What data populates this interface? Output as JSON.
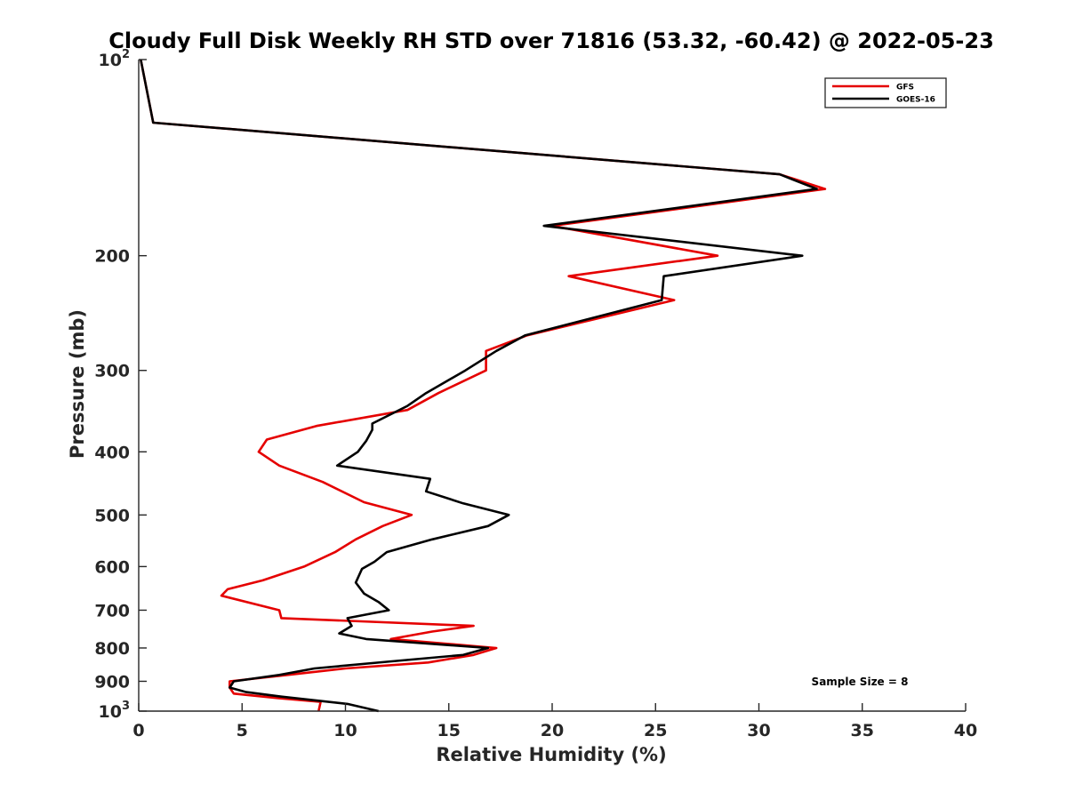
{
  "chart_data": {
    "type": "line",
    "title": "Cloudy Full Disk Weekly RH STD over 71816 (53.32, -60.42) @ 2022-05-23",
    "xlabel": "Relative Humidity (%)",
    "ylabel": "Pressure (mb)",
    "xlim": [
      0,
      40
    ],
    "ylim": [
      100,
      1000
    ],
    "y_scale": "log",
    "y_reversed": true,
    "xticks": [
      0,
      5,
      10,
      15,
      20,
      25,
      30,
      35,
      40
    ],
    "xtick_labels": [
      "0",
      "5",
      "10",
      "15",
      "20",
      "25",
      "30",
      "35",
      "40"
    ],
    "yticks": [
      100,
      200,
      300,
      400,
      500,
      600,
      700,
      800,
      900,
      1000
    ],
    "ytick_labels": [
      {
        "base": "10",
        "exp": "2"
      },
      {
        "base": "200",
        "exp": ""
      },
      {
        "base": "300",
        "exp": ""
      },
      {
        "base": "400",
        "exp": ""
      },
      {
        "base": "500",
        "exp": ""
      },
      {
        "base": "600",
        "exp": ""
      },
      {
        "base": "700",
        "exp": ""
      },
      {
        "base": "800",
        "exp": ""
      },
      {
        "base": "900",
        "exp": ""
      },
      {
        "base": "10",
        "exp": "3"
      }
    ],
    "grid": false,
    "legend_position": "top-right",
    "annotation": "Sample Size = 8",
    "series": [
      {
        "name": "GFS",
        "color": "#e50000",
        "points": [
          [
            0.1,
            100
          ],
          [
            0.7,
            125
          ],
          [
            31.0,
            150
          ],
          [
            33.2,
            158
          ],
          [
            20.0,
            180
          ],
          [
            28.0,
            200
          ],
          [
            20.8,
            215
          ],
          [
            25.9,
            234
          ],
          [
            18.8,
            265
          ],
          [
            16.8,
            280
          ],
          [
            16.8,
            300
          ],
          [
            14.5,
            325
          ],
          [
            13.0,
            345
          ],
          [
            8.6,
            365
          ],
          [
            6.2,
            383
          ],
          [
            5.8,
            400
          ],
          [
            6.8,
            420
          ],
          [
            8.9,
            445
          ],
          [
            10.9,
            478
          ],
          [
            13.2,
            500
          ],
          [
            11.8,
            520
          ],
          [
            10.5,
            545
          ],
          [
            9.5,
            570
          ],
          [
            8.0,
            600
          ],
          [
            6.0,
            630
          ],
          [
            4.3,
            650
          ],
          [
            4.0,
            665
          ],
          [
            6.8,
            700
          ],
          [
            6.9,
            720
          ],
          [
            16.2,
            740
          ],
          [
            14.2,
            755
          ],
          [
            12.2,
            775
          ],
          [
            17.3,
            800
          ],
          [
            16.2,
            820
          ],
          [
            14.0,
            842
          ],
          [
            10.0,
            860
          ],
          [
            7.2,
            880
          ],
          [
            4.4,
            900
          ],
          [
            4.4,
            920
          ],
          [
            4.6,
            940
          ],
          [
            6.7,
            955
          ],
          [
            8.8,
            968
          ],
          [
            8.7,
            1000
          ]
        ]
      },
      {
        "name": "GOES-16",
        "color": "#000000",
        "points": [
          [
            0.1,
            100
          ],
          [
            0.7,
            125
          ],
          [
            31.0,
            150
          ],
          [
            32.8,
            158
          ],
          [
            19.6,
            180
          ],
          [
            32.1,
            200
          ],
          [
            25.4,
            215
          ],
          [
            25.3,
            234
          ],
          [
            18.7,
            265
          ],
          [
            17.3,
            280
          ],
          [
            15.8,
            300
          ],
          [
            13.9,
            325
          ],
          [
            13.0,
            340
          ],
          [
            11.3,
            362
          ],
          [
            11.3,
            370
          ],
          [
            11.0,
            385
          ],
          [
            10.6,
            400
          ],
          [
            9.6,
            420
          ],
          [
            14.1,
            440
          ],
          [
            13.9,
            460
          ],
          [
            15.7,
            480
          ],
          [
            17.9,
            500
          ],
          [
            16.9,
            520
          ],
          [
            14.2,
            545
          ],
          [
            12.0,
            570
          ],
          [
            11.4,
            590
          ],
          [
            10.8,
            605
          ],
          [
            10.5,
            635
          ],
          [
            10.9,
            660
          ],
          [
            11.6,
            680
          ],
          [
            12.1,
            700
          ],
          [
            10.1,
            720
          ],
          [
            10.3,
            740
          ],
          [
            9.7,
            760
          ],
          [
            11.0,
            775
          ],
          [
            16.9,
            800
          ],
          [
            15.7,
            820
          ],
          [
            12.0,
            840
          ],
          [
            8.5,
            860
          ],
          [
            6.8,
            880
          ],
          [
            4.6,
            900
          ],
          [
            4.4,
            920
          ],
          [
            5.2,
            935
          ],
          [
            6.9,
            950
          ],
          [
            10.1,
            975
          ],
          [
            11.6,
            1000
          ]
        ]
      }
    ]
  }
}
